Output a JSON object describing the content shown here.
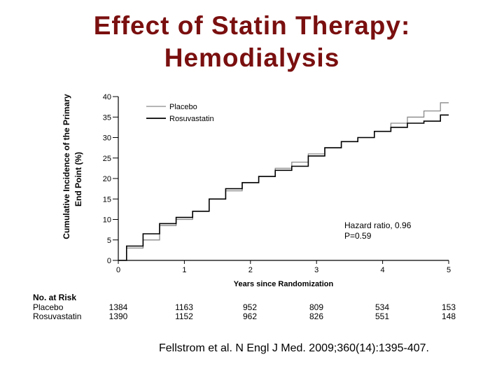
{
  "slide": {
    "title_line1": "Effect of Statin Therapy:",
    "title_line2": "Hemodialysis",
    "citation": "Fellstrom et al. N Engl J Med. 2009;360(14):1395-407.",
    "title_color": "#7a0f0f"
  },
  "chart_data": {
    "type": "line",
    "xlabel": "Years since Randomization",
    "ylabel_line1": "Cumulative Incidence of the Primary",
    "ylabel_line2": "End Point (%)",
    "xlim": [
      0,
      5
    ],
    "ylim": [
      0,
      40
    ],
    "xticks": [
      0,
      1,
      2,
      3,
      4,
      5
    ],
    "yticks": [
      0,
      5,
      10,
      15,
      20,
      25,
      30,
      35,
      40
    ],
    "grid": false,
    "legend_position": "top-left",
    "series": [
      {
        "name": "Placebo",
        "color": "#8a8a8a",
        "x": [
          0,
          0.25,
          0.5,
          0.75,
          1,
          1.25,
          1.5,
          1.75,
          2,
          2.25,
          2.5,
          2.75,
          3,
          3.25,
          3.5,
          3.75,
          4,
          4.25,
          4.5,
          4.75,
          5
        ],
        "y": [
          0,
          3,
          5,
          8.5,
          10,
          12,
          15,
          17,
          19,
          20.5,
          22.5,
          24,
          26,
          27.5,
          29,
          30,
          31.5,
          33.5,
          35,
          36.5,
          38.5
        ]
      },
      {
        "name": "Rosuvastatin",
        "color": "#000000",
        "x": [
          0,
          0.25,
          0.5,
          0.75,
          1,
          1.25,
          1.5,
          1.75,
          2,
          2.25,
          2.5,
          2.75,
          3,
          3.25,
          3.5,
          3.75,
          4,
          4.25,
          4.5,
          4.75,
          5
        ],
        "y": [
          0,
          3.5,
          6.5,
          9,
          10.5,
          12,
          15,
          17.5,
          19,
          20.5,
          22,
          23,
          25.5,
          27.5,
          29,
          30,
          31.5,
          32.5,
          33.5,
          34,
          35.5
        ]
      }
    ],
    "annotation_line1": "Hazard ratio, 0.96",
    "annotation_line2": "P=0.59",
    "risk_table": {
      "header": "No. at Risk",
      "rows": [
        {
          "label": "Placebo",
          "values": [
            "1384",
            "1163",
            "952",
            "809",
            "534",
            "153"
          ]
        },
        {
          "label": "Rosuvastatin",
          "values": [
            "1390",
            "1152",
            "962",
            "826",
            "551",
            "148"
          ]
        }
      ]
    }
  }
}
